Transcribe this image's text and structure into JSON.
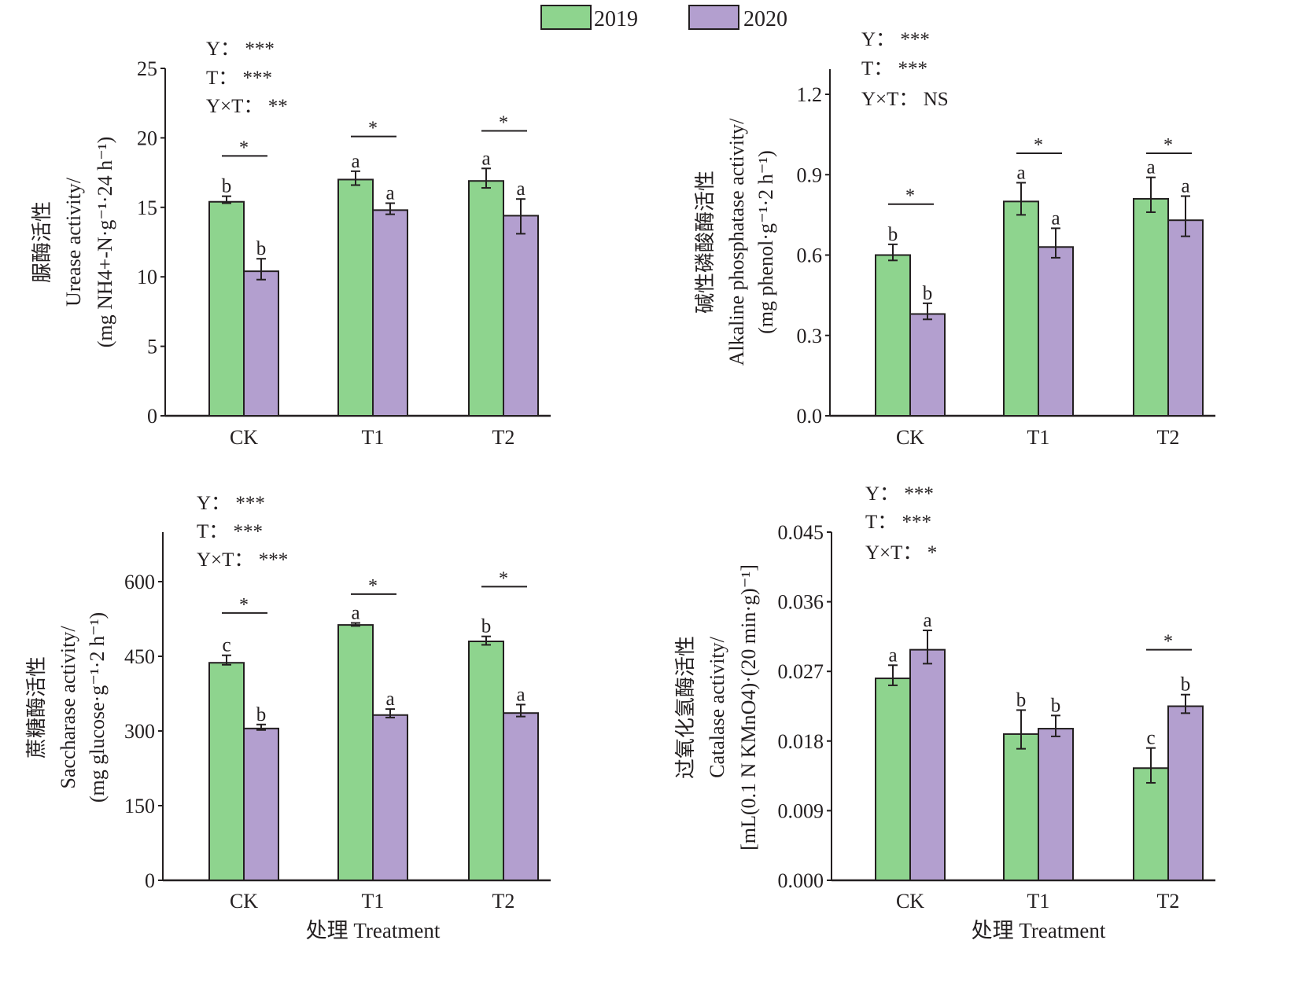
{
  "legend": {
    "entries": [
      {
        "label": "2019",
        "color": "#8ed48e"
      },
      {
        "label": "2020",
        "color": "#b39fcf"
      }
    ]
  },
  "colors": {
    "axis": "#231f20",
    "bar_outline": "#231f20",
    "series_2019": "#8ed48e",
    "series_2020": "#b39fcf"
  },
  "chart_data": [
    {
      "type": "bar",
      "id": "urease",
      "ylabel_lines": [
        "脲酶活性",
        "Urease activity/",
        "(mg NH4+-N·g⁻¹·24 h⁻¹)"
      ],
      "xlabel": "",
      "categories": [
        "CK",
        "T1",
        "T2"
      ],
      "ylim": [
        0,
        25
      ],
      "yticks": [
        0,
        5,
        10,
        15,
        20,
        25
      ],
      "ytick_labels": [
        "0",
        "5",
        "10",
        "15",
        "20",
        "25"
      ],
      "series": [
        {
          "name": "2019",
          "values": [
            15.4,
            17.0,
            16.9
          ],
          "err_low": [
            15.3,
            16.6,
            16.4
          ],
          "err_high": [
            15.8,
            17.6,
            17.8
          ],
          "letters": [
            "b",
            "a",
            "a"
          ]
        },
        {
          "name": "2020",
          "values": [
            10.4,
            14.8,
            14.4
          ],
          "err_low": [
            9.8,
            14.5,
            13.1
          ],
          "err_high": [
            11.3,
            15.3,
            15.6
          ],
          "letters": [
            "b",
            "a",
            "a"
          ]
        }
      ],
      "pair_significance": [
        "*",
        "*",
        "*"
      ],
      "pair_sig_levels": [
        18.7,
        20.1,
        20.5
      ],
      "anova": [
        {
          "label": "Y：",
          "value": "***"
        },
        {
          "label": "T：",
          "value": "***"
        },
        {
          "label": "Y×T：",
          "value": "**"
        }
      ]
    },
    {
      "type": "bar",
      "id": "alkaline-phosphatase",
      "ylabel_lines": [
        "碱性磷酸酶活性",
        "Alkaline phosphatase activity/",
        "(mg phenol·g⁻¹·2 h⁻¹)"
      ],
      "xlabel": "",
      "categories": [
        "CK",
        "T1",
        "T2"
      ],
      "ylim": [
        0,
        1.3
      ],
      "yticks": [
        0,
        0.3,
        0.6,
        0.9,
        1.2
      ],
      "ytick_labels": [
        "0.0",
        "0.3",
        "0.6",
        "0.9",
        "1.2"
      ],
      "series": [
        {
          "name": "2019",
          "values": [
            0.6,
            0.8,
            0.81
          ],
          "err_low": [
            0.58,
            0.75,
            0.76
          ],
          "err_high": [
            0.64,
            0.87,
            0.89
          ],
          "letters": [
            "b",
            "a",
            "a"
          ]
        },
        {
          "name": "2020",
          "values": [
            0.38,
            0.63,
            0.73
          ],
          "err_low": [
            0.36,
            0.59,
            0.67
          ],
          "err_high": [
            0.42,
            0.7,
            0.82
          ],
          "letters": [
            "b",
            "a",
            "a"
          ]
        }
      ],
      "pair_significance": [
        "*",
        "*",
        "*"
      ],
      "pair_sig_levels": [
        0.79,
        0.98,
        0.98
      ],
      "anova": [
        {
          "label": "Y：",
          "value": "***"
        },
        {
          "label": "T：",
          "value": "***"
        },
        {
          "label": "Y×T：",
          "value": "NS"
        }
      ]
    },
    {
      "type": "bar",
      "id": "saccharase",
      "ylabel_lines": [
        "蔗糖酶活性",
        "Saccharase activity/",
        "(mg glucose·g⁻¹·2 h⁻¹)"
      ],
      "xlabel": "处理  Treatment",
      "categories": [
        "CK",
        "T1",
        "T2"
      ],
      "ylim": [
        0,
        700
      ],
      "yticks": [
        0,
        150,
        300,
        450,
        600
      ],
      "ytick_labels": [
        "0",
        "150",
        "300",
        "450",
        "600"
      ],
      "series": [
        {
          "name": "2019",
          "values": [
            437,
            513,
            480
          ],
          "err_low": [
            433,
            511,
            473
          ],
          "err_high": [
            452,
            517,
            490
          ],
          "letters": [
            "c",
            "a",
            "b"
          ]
        },
        {
          "name": "2020",
          "values": [
            305,
            332,
            336
          ],
          "err_low": [
            302,
            327,
            329
          ],
          "err_high": [
            313,
            344,
            353
          ],
          "letters": [
            "b",
            "a",
            "a"
          ]
        }
      ],
      "pair_significance": [
        "*",
        "*",
        "*"
      ],
      "pair_sig_levels": [
        537,
        575,
        590
      ],
      "anova": [
        {
          "label": "Y：",
          "value": "***"
        },
        {
          "label": "T：",
          "value": "***"
        },
        {
          "label": "Y×T：",
          "value": "***"
        }
      ]
    },
    {
      "type": "bar",
      "id": "catalase",
      "ylabel_lines": [
        "过氧化氢酶活性",
        "Catalase activity/",
        "[mL(0.1 N KMnO4)·(20 min·g)⁻¹]"
      ],
      "xlabel": "处理  Treatment",
      "categories": [
        "CK",
        "T1",
        "T2"
      ],
      "ylim": [
        0,
        0.045
      ],
      "yticks": [
        0,
        0.009,
        0.018,
        0.027,
        0.036,
        0.045
      ],
      "ytick_labels": [
        "0.000",
        "0.009",
        "0.018",
        "0.027",
        "0.036",
        "0.045"
      ],
      "series": [
        {
          "name": "2019",
          "values": [
            0.0261,
            0.0189,
            0.0145
          ],
          "err_low": [
            0.0252,
            0.017,
            0.0126
          ],
          "err_high": [
            0.0278,
            0.022,
            0.0171
          ],
          "letters": [
            "a",
            "b",
            "c"
          ]
        },
        {
          "name": "2020",
          "values": [
            0.0298,
            0.0196,
            0.0225
          ],
          "err_low": [
            0.028,
            0.0186,
            0.0216
          ],
          "err_high": [
            0.0323,
            0.0213,
            0.024
          ],
          "letters": [
            "a",
            "b",
            "b"
          ]
        }
      ],
      "pair_significance": [
        "",
        "",
        "*"
      ],
      "pair_sig_levels": [
        null,
        null,
        0.0298
      ],
      "anova": [
        {
          "label": "Y：",
          "value": "***"
        },
        {
          "label": "T：",
          "value": "***"
        },
        {
          "label": "Y×T：",
          "value": "*"
        }
      ]
    }
  ]
}
